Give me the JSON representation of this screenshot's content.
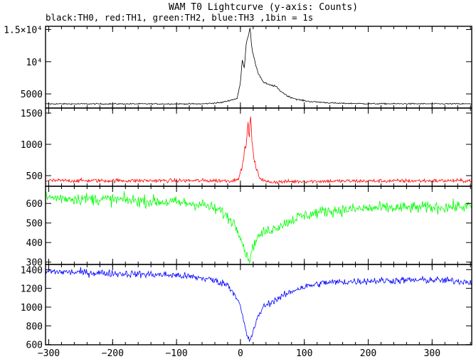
{
  "chart_data": {
    "type": "line",
    "title": "WAM T0 Lightcurve (y-axis: Counts)",
    "subtitle": "black:TH0, red:TH1, green:TH2, blue:TH3 ,1bin = 1s",
    "xlim": [
      -305,
      362
    ],
    "x_ticks": [
      -300,
      -200,
      -100,
      0,
      100,
      200,
      300
    ],
    "x_tick_labels": [
      "−300",
      "−200",
      "−100",
      "0",
      "100",
      "200",
      "300"
    ],
    "grid": false,
    "panels": [
      {
        "series": "TH0",
        "color": "#000000",
        "ylim": [
          2800,
          15500
        ],
        "y_ticks": [
          5000,
          10000,
          15000
        ],
        "y_tick_labels": [
          "5000",
          "10⁴",
          "1.5×10⁴"
        ],
        "baseline": 3450,
        "noise": 70,
        "profile": [
          [
            -305,
            3450
          ],
          [
            -60,
            3450
          ],
          [
            -30,
            3650
          ],
          [
            -5,
            4300
          ],
          [
            0,
            6800
          ],
          [
            3,
            10400
          ],
          [
            6,
            9000
          ],
          [
            9,
            12800
          ],
          [
            12,
            14000
          ],
          [
            15,
            15300
          ],
          [
            18,
            12000
          ],
          [
            22,
            10200
          ],
          [
            28,
            8200
          ],
          [
            36,
            6800
          ],
          [
            45,
            6400
          ],
          [
            55,
            6200
          ],
          [
            62,
            5500
          ],
          [
            75,
            4600
          ],
          [
            90,
            4100
          ],
          [
            110,
            3800
          ],
          [
            150,
            3550
          ],
          [
            200,
            3480
          ],
          [
            362,
            3450
          ]
        ],
        "values": []
      },
      {
        "series": "TH1",
        "color": "#ff0000",
        "ylim": [
          330,
          1580
        ],
        "y_ticks": [
          500,
          1000,
          1500
        ],
        "y_tick_labels": [
          "500",
          "1000",
          "1500"
        ],
        "baseline": 420,
        "noise": 22,
        "profile": [
          [
            -305,
            420
          ],
          [
            -10,
            420
          ],
          [
            -2,
            480
          ],
          [
            3,
            640
          ],
          [
            6,
            880
          ],
          [
            9,
            1000
          ],
          [
            12,
            1320
          ],
          [
            14,
            1150
          ],
          [
            16,
            1450
          ],
          [
            18,
            1050
          ],
          [
            21,
            780
          ],
          [
            25,
            600
          ],
          [
            30,
            470
          ],
          [
            40,
            400
          ],
          [
            60,
            400
          ],
          [
            100,
            410
          ],
          [
            362,
            420
          ]
        ],
        "values": []
      },
      {
        "series": "TH2",
        "color": "#00ff00",
        "ylim": [
          288,
          688
        ],
        "y_ticks": [
          300,
          400,
          500,
          600
        ],
        "y_tick_labels": [
          "300",
          "400",
          "500",
          "600"
        ],
        "baseline": 620,
        "noise": 22,
        "profile": [
          [
            -305,
            630
          ],
          [
            -200,
            620
          ],
          [
            -100,
            605
          ],
          [
            -60,
            595
          ],
          [
            -30,
            560
          ],
          [
            -10,
            500
          ],
          [
            0,
            440
          ],
          [
            5,
            380
          ],
          [
            10,
            330
          ],
          [
            14,
            310
          ],
          [
            18,
            360
          ],
          [
            25,
            420
          ],
          [
            35,
            450
          ],
          [
            50,
            470
          ],
          [
            70,
            500
          ],
          [
            90,
            530
          ],
          [
            130,
            560
          ],
          [
            200,
            575
          ],
          [
            300,
            580
          ],
          [
            362,
            585
          ]
        ],
        "values": []
      },
      {
        "series": "TH3",
        "color": "#0000ff",
        "ylim": [
          598,
          1455
        ],
        "y_ticks": [
          600,
          800,
          1000,
          1200,
          1400
        ],
        "y_tick_labels": [
          "600",
          "800",
          "1000",
          "1200",
          "1400"
        ],
        "baseline": 1370,
        "noise": 28,
        "profile": [
          [
            -305,
            1380
          ],
          [
            -200,
            1360
          ],
          [
            -100,
            1340
          ],
          [
            -50,
            1300
          ],
          [
            -20,
            1240
          ],
          [
            -5,
            1100
          ],
          [
            0,
            1000
          ],
          [
            5,
            850
          ],
          [
            10,
            700
          ],
          [
            14,
            640
          ],
          [
            18,
            700
          ],
          [
            25,
            850
          ],
          [
            35,
            1000
          ],
          [
            50,
            1060
          ],
          [
            70,
            1130
          ],
          [
            90,
            1200
          ],
          [
            130,
            1260
          ],
          [
            200,
            1280
          ],
          [
            300,
            1290
          ],
          [
            362,
            1270
          ]
        ],
        "values": []
      }
    ]
  }
}
